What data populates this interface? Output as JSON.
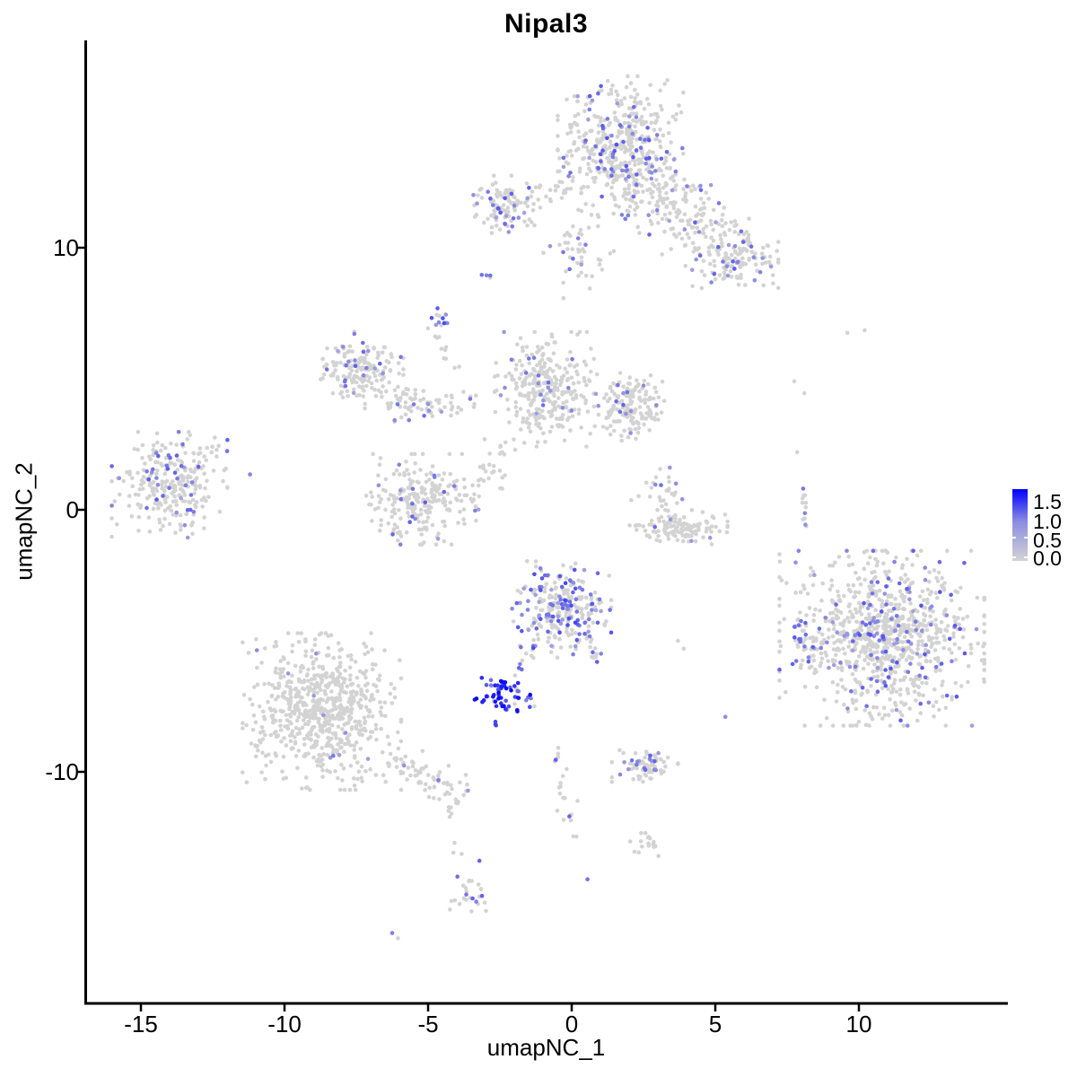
{
  "title": "Nipal3",
  "axes": {
    "x_label": "umapNC_1",
    "y_label": "umapNC_2",
    "x_ticks": [
      -15,
      -10,
      -5,
      0,
      5,
      10
    ],
    "y_ticks": [
      -10,
      0,
      10
    ]
  },
  "legend": {
    "labels": [
      "1.5",
      "1.0",
      "0.5",
      "0.0"
    ],
    "values": [
      1.5,
      1.0,
      0.5,
      0.0
    ],
    "low_color": "#D3D3D3",
    "high_color": "#0000FF"
  },
  "colors": {
    "background": "#FFFFFF",
    "axis": "#000000",
    "unexpressed_point": "#D3D3D3",
    "expressed_high": "#0000FF"
  },
  "chart_data": {
    "type": "scatter",
    "title": "Nipal3",
    "xlabel": "umapNC_1",
    "ylabel": "umapNC_2",
    "xlim": [
      -16.9,
      15.2
    ],
    "ylim": [
      -18.8,
      17.9
    ],
    "grid": false,
    "legend_position": "right",
    "color_scale": {
      "low": "#D3D3D3",
      "high": "#0000FF",
      "domain": [
        0,
        1.8
      ]
    },
    "point_description": "UMAP embedding of single cells coloured by Nipal3 expression; v=0 cells are grey, expressed cells shade lightgrey→blue up to ~1.8",
    "clusters": [
      {
        "name": "top-main",
        "type": "blob",
        "cx": 1.7,
        "cy": 13.9,
        "rx": 1.9,
        "ry": 2.3,
        "n": 430,
        "frac": 0.16,
        "v0": 0.4,
        "v1": 1.1
      },
      {
        "name": "top-right-band",
        "type": "chain",
        "x1": 2.4,
        "y1": 12.6,
        "x2": 6.0,
        "y2": 9.4,
        "jx": 0.75,
        "jy": 0.55,
        "n": 250,
        "frac": 0.12,
        "v0": 0.4,
        "v1": 1.0
      },
      {
        "name": "top-right-knot",
        "type": "blob",
        "cx": 5.7,
        "cy": 9.3,
        "rx": 1.3,
        "ry": 0.8,
        "n": 80,
        "frac": 0.14,
        "v0": 0.4,
        "v1": 1.0
      },
      {
        "name": "top-left-lobe",
        "type": "blob",
        "cx": -2.3,
        "cy": 11.6,
        "rx": 1.05,
        "ry": 1.0,
        "n": 110,
        "frac": 0.2,
        "v0": 0.4,
        "v1": 1.1
      },
      {
        "name": "top-bridge",
        "type": "chain",
        "x1": -1.4,
        "y1": 11.9,
        "x2": 0.3,
        "y2": 12.6,
        "jx": 0.3,
        "jy": 0.3,
        "n": 28,
        "frac": 0.1,
        "v0": 0.4,
        "v1": 0.9
      },
      {
        "name": "top-under-straggle",
        "type": "blob",
        "cx": 0.2,
        "cy": 9.8,
        "rx": 1.1,
        "ry": 1.5,
        "n": 50,
        "frac": 0.1,
        "v0": 0.4,
        "v1": 0.9
      },
      {
        "name": "purple-trio",
        "type": "chain",
        "x1": -3.0,
        "y1": 8.95,
        "x2": -2.5,
        "y2": 8.35,
        "jx": 0.1,
        "jy": 0.1,
        "n": 4,
        "frac": 0.85,
        "v0": 0.6,
        "v1": 1.0
      },
      {
        "name": "spur-blob",
        "type": "blob",
        "cx": -4.65,
        "cy": 7.35,
        "rx": 0.4,
        "ry": 0.5,
        "n": 14,
        "frac": 0.45,
        "v0": 0.5,
        "v1": 1.2
      },
      {
        "name": "spur-chain",
        "type": "chain",
        "x1": -4.8,
        "y1": 6.9,
        "x2": -3.35,
        "y2": 3.95,
        "jx": 0.12,
        "jy": 0.12,
        "n": 16,
        "frac": 0.12,
        "v0": 0.4,
        "v1": 0.9
      },
      {
        "name": "mid-left-wing",
        "type": "blob",
        "cx": -7.3,
        "cy": 5.3,
        "rx": 1.25,
        "ry": 1.3,
        "n": 175,
        "frac": 0.16,
        "v0": 0.4,
        "v1": 1.0
      },
      {
        "name": "wing-hook",
        "type": "chain",
        "x1": -6.3,
        "y1": 4.1,
        "x2": -4.0,
        "y2": 3.85,
        "jx": 0.3,
        "jy": 0.28,
        "n": 70,
        "frac": 0.1,
        "v0": 0.4,
        "v1": 0.9
      },
      {
        "name": "center-mid",
        "type": "blob",
        "cx": -0.9,
        "cy": 4.6,
        "rx": 1.55,
        "ry": 1.9,
        "n": 300,
        "frac": 0.07,
        "v0": 0.4,
        "v1": 0.9
      },
      {
        "name": "center-mid-right",
        "type": "blob",
        "cx": 2.0,
        "cy": 3.9,
        "rx": 1.25,
        "ry": 1.15,
        "n": 170,
        "frac": 0.13,
        "v0": 0.4,
        "v1": 1.0
      },
      {
        "name": "between-straggle",
        "type": "blob",
        "cx": -2.6,
        "cy": 1.6,
        "rx": 0.55,
        "ry": 0.95,
        "n": 26,
        "frac": 0.07,
        "v0": 0.4,
        "v1": 0.8
      },
      {
        "name": "u-cluster",
        "type": "blob",
        "cx": -5.2,
        "cy": 0.4,
        "rx": 1.7,
        "ry": 1.5,
        "n": 240,
        "frac": 0.08,
        "v0": 0.4,
        "v1": 1.0
      },
      {
        "name": "far-left",
        "type": "blob",
        "cx": -14.0,
        "cy": 0.9,
        "rx": 1.75,
        "ry": 1.8,
        "n": 270,
        "frac": 0.17,
        "v0": 0.4,
        "v1": 1.1
      },
      {
        "name": "far-left-straggle",
        "type": "blob",
        "cx": -12.4,
        "cy": 2.2,
        "rx": 0.6,
        "ry": 0.5,
        "n": 8,
        "frac": 0,
        "v0": 0,
        "v1": 0
      },
      {
        "name": "far-left-outlier",
        "type": "points",
        "points": [
          [
            -11.2,
            1.35,
            0.7
          ]
        ]
      },
      {
        "name": "crescent",
        "type": "blob",
        "cx": 3.7,
        "cy": -0.7,
        "rx": 1.5,
        "ry": 0.6,
        "n": 130,
        "frac": 0.05,
        "v0": 0.4,
        "v1": 1.0
      },
      {
        "name": "crescent-upper",
        "type": "blob",
        "cx": 3.1,
        "cy": 0.7,
        "rx": 0.9,
        "ry": 1.0,
        "n": 30,
        "frac": 0.13,
        "v0": 0.4,
        "v1": 0.9
      },
      {
        "name": "right-minichain",
        "type": "chain",
        "x1": 8.1,
        "y1": 0.8,
        "x2": 8.2,
        "y2": -0.6,
        "jx": 0.12,
        "jy": 0.15,
        "n": 12,
        "frac": 0.25,
        "v0": 0.5,
        "v1": 1.0
      },
      {
        "name": "right-sparse-singles",
        "type": "points",
        "points": [
          [
            9.6,
            6.75
          ],
          [
            10.2,
            6.85
          ],
          [
            7.75,
            4.9
          ],
          [
            8.1,
            4.45
          ],
          [
            7.85,
            2.2
          ]
        ]
      },
      {
        "name": "center-expressing",
        "type": "blob",
        "cx": -0.35,
        "cy": -3.8,
        "rx": 1.5,
        "ry": 1.6,
        "n": 260,
        "frac": 0.45,
        "v0": 0.4,
        "v1": 1.2
      },
      {
        "name": "expressing-tail",
        "type": "chain",
        "x1": -1.1,
        "y1": -4.9,
        "x2": -2.0,
        "y2": -6.3,
        "jx": 0.1,
        "jy": 0.1,
        "n": 13,
        "frac": 0.6,
        "v0": 0.5,
        "v1": 1.2
      },
      {
        "name": "expressing-right-arc",
        "type": "chain",
        "x1": 0.6,
        "y1": -4.2,
        "x2": 0.95,
        "y2": -6.1,
        "jx": 0.12,
        "jy": 0.12,
        "n": 13,
        "frac": 0.3,
        "v0": 0.4,
        "v1": 1.0
      },
      {
        "name": "dark-blue-blob",
        "type": "blob",
        "cx": -2.4,
        "cy": -7.1,
        "rx": 0.85,
        "ry": 0.65,
        "n": 60,
        "frac": 0.93,
        "v0": 0.7,
        "v1": 1.8
      },
      {
        "name": "dark-blob-drip",
        "type": "chain",
        "x1": -2.7,
        "y1": -7.9,
        "x2": -2.6,
        "y2": -8.45,
        "jx": 0.06,
        "jy": 0.06,
        "n": 3,
        "frac": 0.7,
        "v0": 0.8,
        "v1": 1.6
      },
      {
        "name": "bottom-left-main",
        "type": "blob",
        "cx": -8.7,
        "cy": -7.7,
        "rx": 2.4,
        "ry": 2.6,
        "n": 700,
        "frac": 0.012,
        "v0": 0.4,
        "v1": 0.8
      },
      {
        "name": "bottom-left-tail",
        "type": "chain",
        "x1": -6.4,
        "y1": -9.4,
        "x2": -3.95,
        "y2": -10.9,
        "jx": 0.3,
        "jy": 0.25,
        "n": 70,
        "frac": 0.03,
        "v0": 0.4,
        "v1": 0.9
      },
      {
        "name": "tail-drip",
        "type": "chain",
        "x1": -4.25,
        "y1": -11.3,
        "x2": -3.9,
        "y2": -13.3,
        "jx": 0.08,
        "jy": 0.1,
        "n": 8,
        "frac": 0.12,
        "v0": 0.5,
        "v1": 0.9
      },
      {
        "name": "bottom-purple-blob",
        "type": "blob",
        "cx": -3.55,
        "cy": -14.6,
        "rx": 0.6,
        "ry": 1.05,
        "n": 26,
        "frac": 0.5,
        "v0": 0.5,
        "v1": 1.1
      },
      {
        "name": "bottom-pair",
        "type": "points",
        "points": [
          [
            -6.25,
            -16.15,
            0.7
          ],
          [
            -6.05,
            -16.35
          ]
        ]
      },
      {
        "name": "right-main",
        "type": "blob",
        "cx": 10.8,
        "cy": -4.9,
        "rx": 3.1,
        "ry": 2.9,
        "n": 950,
        "frac": 0.14,
        "v0": 0.4,
        "v1": 1.1
      },
      {
        "name": "right-main-west-tail",
        "type": "chain",
        "x1": 8.0,
        "y1": -4.2,
        "x2": 8.35,
        "y2": -6.1,
        "jx": 0.15,
        "jy": 0.2,
        "n": 25,
        "frac": 0.25,
        "v0": 0.4,
        "v1": 1.0
      },
      {
        "name": "small-south-cluster",
        "type": "blob",
        "cx": 2.55,
        "cy": -9.75,
        "rx": 1.0,
        "ry": 0.55,
        "n": 75,
        "frac": 0.28,
        "v0": 0.4,
        "v1": 1.0
      },
      {
        "name": "south-chain",
        "type": "chain",
        "x1": -0.5,
        "y1": -9.3,
        "x2": 0.05,
        "y2": -12.5,
        "jx": 0.15,
        "jy": 0.2,
        "n": 22,
        "frac": 0.05,
        "v0": 0.8,
        "v1": 1.0
      },
      {
        "name": "south-bloblet",
        "type": "blob",
        "cx": 2.5,
        "cy": -12.8,
        "rx": 0.6,
        "ry": 0.4,
        "n": 18,
        "frac": 0,
        "v0": 0,
        "v1": 0
      },
      {
        "name": "south-single",
        "type": "points",
        "points": [
          [
            0.55,
            -14.1,
            0.8
          ]
        ]
      },
      {
        "name": "stray-singles",
        "type": "points",
        "points": [
          [
            -1.3,
            -7.5
          ],
          [
            3.7,
            -5.0
          ],
          [
            3.9,
            -5.3
          ],
          [
            5.35,
            -7.9,
            0.6
          ]
        ]
      }
    ]
  }
}
